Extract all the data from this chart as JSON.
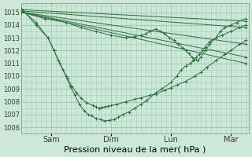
{
  "bg_color": "#cce8d8",
  "grid_color": "#a8c8b8",
  "line_color": "#2d6e3e",
  "xlabel": "Pression niveau de la mer( hPa )",
  "xlabel_fontsize": 8,
  "ylim": [
    1005.5,
    1015.7
  ],
  "ytick_vals": [
    1006,
    1007,
    1008,
    1009,
    1010,
    1011,
    1012,
    1013,
    1014,
    1015
  ],
  "ytick_fontsize": 6,
  "xtick_labels": [
    "Sam",
    "Dim",
    "Lun",
    "Mar"
  ],
  "xtick_positions": [
    1,
    3,
    5,
    7
  ],
  "xlim": [
    0,
    7.6
  ],
  "series": [
    {
      "x": [
        0.02,
        7.5
      ],
      "y": [
        1015.2,
        1014.3
      ]
    },
    {
      "x": [
        0.02,
        7.5
      ],
      "y": [
        1015.1,
        1013.8
      ]
    },
    {
      "x": [
        0.02,
        7.5
      ],
      "y": [
        1015.0,
        1012.5
      ]
    },
    {
      "x": [
        0.02,
        7.5
      ],
      "y": [
        1015.0,
        1011.5
      ]
    },
    {
      "x": [
        0.02,
        7.5
      ],
      "y": [
        1015.0,
        1011.0
      ]
    },
    {
      "x": [
        0.02,
        0.5,
        0.9,
        1.1,
        1.25,
        1.4,
        1.55,
        1.7,
        1.85,
        2.0,
        2.2,
        2.4,
        2.5,
        2.6,
        2.7,
        2.8,
        2.9,
        3.0,
        3.2,
        3.5,
        3.8,
        4.0,
        4.3,
        4.5,
        4.8,
        5.0,
        5.2,
        5.5,
        5.8,
        6.0,
        6.2,
        6.5,
        6.8,
        7.0,
        7.3,
        7.5
      ],
      "y": [
        1015.2,
        1014.2,
        1013.0,
        1012.0,
        1011.2,
        1010.5,
        1009.8,
        1009.2,
        1008.7,
        1008.3,
        1007.9,
        1007.7,
        1007.6,
        1007.5,
        1007.55,
        1007.6,
        1007.65,
        1007.7,
        1007.8,
        1008.0,
        1008.2,
        1008.3,
        1008.5,
        1008.6,
        1008.9,
        1009.1,
        1009.3,
        1009.6,
        1010.0,
        1010.3,
        1010.7,
        1011.2,
        1011.7,
        1012.0,
        1012.5,
        1012.8
      ]
    },
    {
      "x": [
        0.02,
        0.5,
        0.9,
        1.1,
        1.3,
        1.5,
        1.65,
        1.8,
        1.95,
        2.1,
        2.25,
        2.35,
        2.5,
        2.65,
        2.8,
        2.95,
        3.1,
        3.25,
        3.4,
        3.6,
        3.8,
        4.0,
        4.2,
        4.5,
        4.7,
        5.0,
        5.2,
        5.35,
        5.5,
        5.65,
        5.75,
        5.85,
        5.95,
        6.05,
        6.15,
        6.3,
        6.5,
        6.7,
        7.0,
        7.3,
        7.5
      ],
      "y": [
        1015.3,
        1014.0,
        1013.0,
        1012.0,
        1011.0,
        1010.0,
        1009.2,
        1008.5,
        1007.8,
        1007.3,
        1007.0,
        1006.9,
        1006.7,
        1006.6,
        1006.5,
        1006.55,
        1006.6,
        1006.8,
        1007.0,
        1007.2,
        1007.5,
        1007.8,
        1008.1,
        1008.7,
        1009.0,
        1009.5,
        1010.0,
        1010.5,
        1010.8,
        1011.0,
        1011.2,
        1011.5,
        1011.7,
        1012.0,
        1012.3,
        1012.7,
        1013.0,
        1013.2,
        1013.5,
        1013.8,
        1014.0
      ]
    },
    {
      "x": [
        0.02,
        0.8,
        1.5,
        2.0,
        2.5,
        3.0,
        3.5,
        3.8,
        4.0,
        4.15,
        4.3,
        4.5,
        4.65,
        4.8,
        4.95,
        5.1,
        5.25,
        5.4,
        5.5,
        5.6,
        5.7,
        5.8,
        5.9,
        6.0,
        6.15,
        6.3,
        6.5,
        6.65,
        6.8,
        7.0,
        7.2,
        7.5
      ],
      "y": [
        1015.0,
        1014.5,
        1014.2,
        1013.8,
        1013.5,
        1013.2,
        1013.0,
        1013.1,
        1013.2,
        1013.3,
        1013.5,
        1013.7,
        1013.5,
        1013.3,
        1013.0,
        1012.8,
        1012.5,
        1012.2,
        1012.0,
        1011.8,
        1011.5,
        1011.3,
        1011.2,
        1011.5,
        1012.0,
        1012.5,
        1013.0,
        1013.5,
        1013.8,
        1014.0,
        1014.2,
        1014.5
      ]
    }
  ]
}
